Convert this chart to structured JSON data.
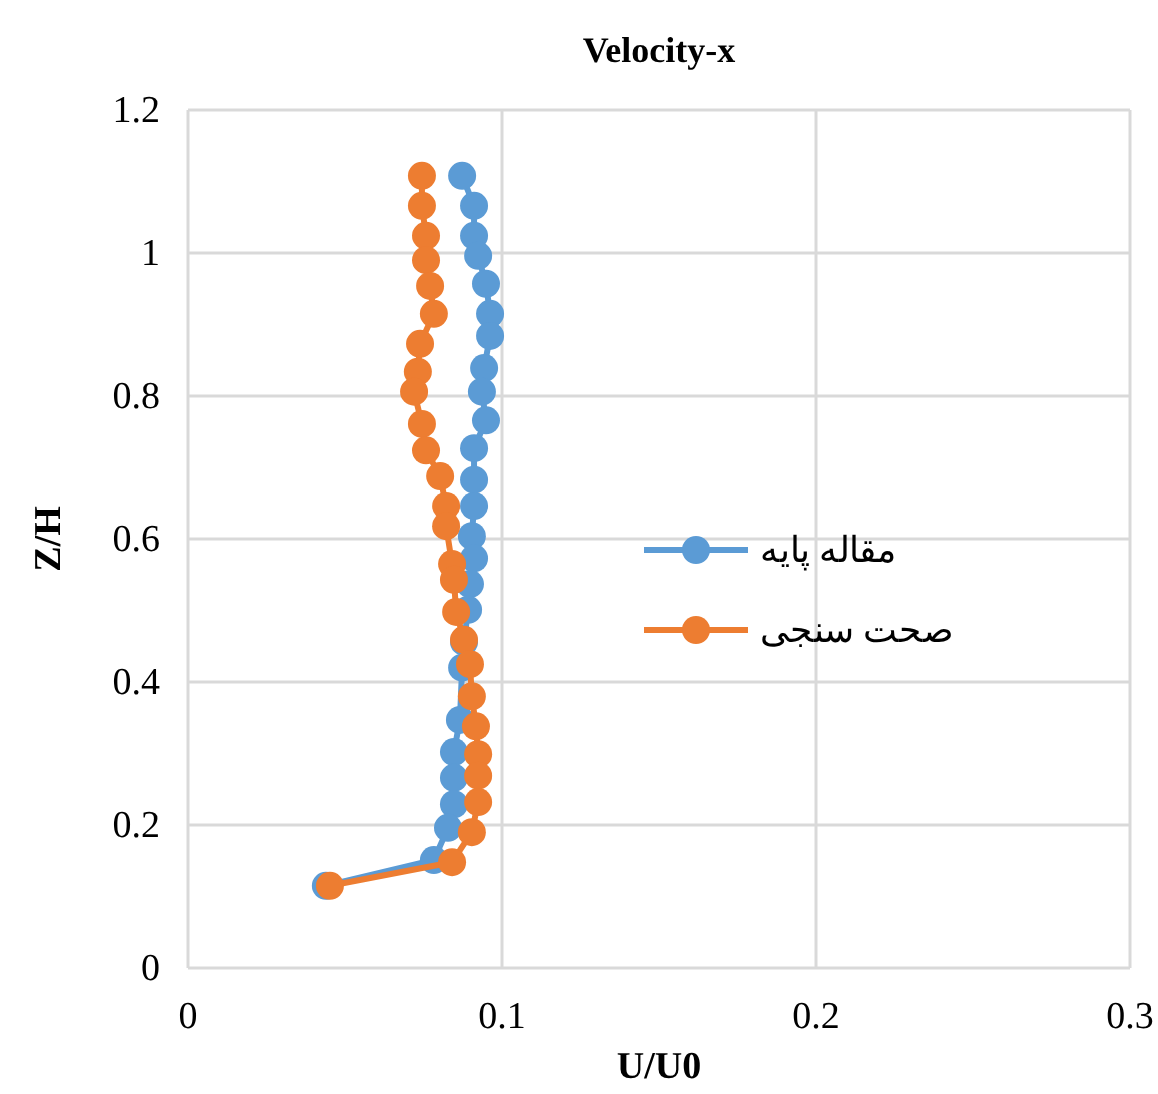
{
  "chart_data": {
    "type": "line",
    "title": "Velocity-x",
    "xlabel": "U/U0",
    "ylabel": "Z/H",
    "xlim": [
      0,
      0.3
    ],
    "xticks": [
      0,
      0.1,
      0.2,
      0.3
    ],
    "ylim": [
      0,
      1.2
    ],
    "yticks": [
      0,
      0.2,
      0.4,
      0.6,
      0.8,
      1,
      1.2
    ],
    "grid": true,
    "legend": "right",
    "marker": "circle",
    "line_style": "solid",
    "series": [
      {
        "name": "مقاله پایه",
        "color": "#5b9bd5",
        "x": [
          0.0873,
          0.0911,
          0.0911,
          0.0924,
          0.0949,
          0.0962,
          0.0962,
          0.0943,
          0.0936,
          0.0949,
          0.0911,
          0.0911,
          0.0911,
          0.0904,
          0.0911,
          0.0898,
          0.0892,
          0.0879,
          0.0873,
          0.0866,
          0.0847,
          0.0847,
          0.0847,
          0.0828,
          0.0783,
          0.0439
        ],
        "values": [
          1.108,
          1.066,
          1.024,
          0.996,
          0.957,
          0.915,
          0.884,
          0.839,
          0.806,
          0.766,
          0.727,
          0.683,
          0.646,
          0.604,
          0.573,
          0.537,
          0.501,
          0.456,
          0.42,
          0.347,
          0.302,
          0.266,
          0.229,
          0.196,
          0.151,
          0.115
        ]
      },
      {
        "name": "صحت سنجی",
        "color": "#ed7d31",
        "x": [
          0.0745,
          0.0745,
          0.0758,
          0.0758,
          0.0771,
          0.0783,
          0.0739,
          0.0732,
          0.072,
          0.0745,
          0.0758,
          0.0803,
          0.0822,
          0.0822,
          0.0841,
          0.0847,
          0.0854,
          0.0879,
          0.0898,
          0.0904,
          0.0917,
          0.0924,
          0.0924,
          0.0924,
          0.0904,
          0.0841,
          0.0452
        ],
        "values": [
          1.108,
          1.066,
          1.024,
          0.99,
          0.954,
          0.915,
          0.873,
          0.834,
          0.806,
          0.761,
          0.724,
          0.688,
          0.646,
          0.618,
          0.565,
          0.543,
          0.498,
          0.459,
          0.425,
          0.38,
          0.338,
          0.299,
          0.269,
          0.232,
          0.19,
          0.148,
          0.115
        ]
      }
    ]
  }
}
